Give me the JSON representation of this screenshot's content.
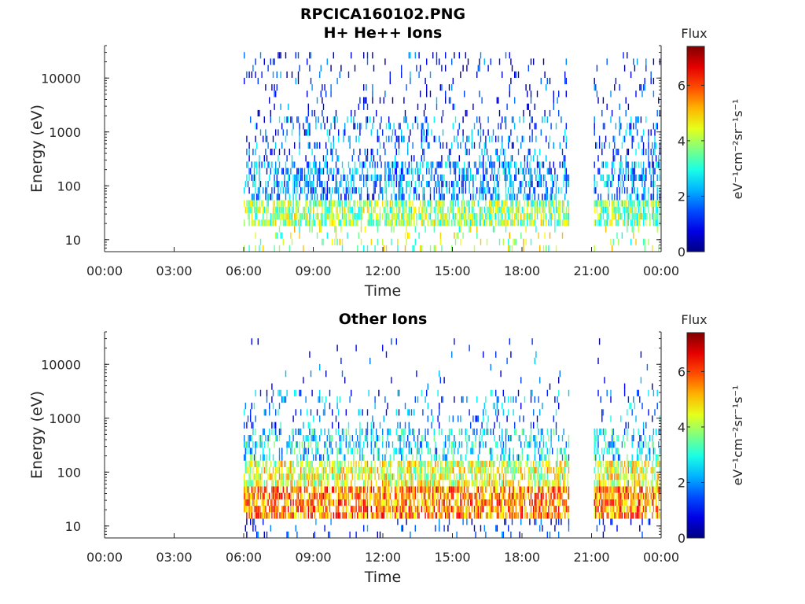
{
  "figure": {
    "title_line1": "RPCICA160102.PNG"
  },
  "colorbar": {
    "label": "Flux",
    "unit_text": "eV⁻¹cm⁻²sr⁻¹s⁻¹",
    "ticks": [
      "0",
      "2",
      "4",
      "6"
    ],
    "range": [
      0,
      7.4
    ],
    "colormap": "jet"
  },
  "chart_data": [
    {
      "type": "heatmap",
      "title": "H+ He++ Ions",
      "xlabel": "Time",
      "ylabel": "Energy (eV)",
      "x_tick_labels": [
        "00:00",
        "03:00",
        "06:00",
        "09:00",
        "12:00",
        "15:00",
        "18:00",
        "21:00",
        "00:00"
      ],
      "xlim_hours": [
        0,
        24
      ],
      "y_tick_labels": [
        "10",
        "100",
        "1000",
        "10000"
      ],
      "y_ticks": [
        10,
        100,
        1000,
        10000
      ],
      "ylim": [
        6,
        40000
      ],
      "y_scale": "log",
      "data_intervals_hours": [
        [
          6.0,
          20.0
        ],
        [
          21.1,
          23.95
        ]
      ],
      "intensity_profile": [
        {
          "energy_range": [
            6,
            18
          ],
          "flux": 4.0,
          "coverage": 0.15
        },
        {
          "energy_range": [
            18,
            60
          ],
          "flux": 3.8,
          "coverage": 0.85
        },
        {
          "energy_range": [
            60,
            250
          ],
          "flux": 2.0,
          "coverage": 0.55
        },
        {
          "energy_range": [
            250,
            2000
          ],
          "flux": 1.6,
          "coverage": 0.25
        },
        {
          "energy_range": [
            2000,
            30000
          ],
          "flux": 1.0,
          "coverage": 0.1
        }
      ]
    },
    {
      "type": "heatmap",
      "title": "Other Ions",
      "xlabel": "Time",
      "ylabel": "Energy (eV)",
      "x_tick_labels": [
        "00:00",
        "03:00",
        "06:00",
        "09:00",
        "12:00",
        "15:00",
        "18:00",
        "21:00",
        "00:00"
      ],
      "xlim_hours": [
        0,
        24
      ],
      "y_tick_labels": [
        "10",
        "100",
        "1000",
        "10000"
      ],
      "y_ticks": [
        10,
        100,
        1000,
        10000
      ],
      "ylim": [
        6,
        40000
      ],
      "y_scale": "log",
      "data_intervals_hours": [
        [
          6.0,
          20.0
        ],
        [
          21.1,
          23.95
        ]
      ],
      "intensity_profile": [
        {
          "energy_range": [
            6,
            12
          ],
          "flux": 1.0,
          "coverage": 0.12
        },
        {
          "energy_range": [
            12,
            50
          ],
          "flux": 5.6,
          "coverage": 0.95
        },
        {
          "energy_range": [
            50,
            150
          ],
          "flux": 4.4,
          "coverage": 0.8
        },
        {
          "energy_range": [
            150,
            600
          ],
          "flux": 2.6,
          "coverage": 0.45
        },
        {
          "energy_range": [
            600,
            3000
          ],
          "flux": 1.8,
          "coverage": 0.15
        },
        {
          "energy_range": [
            3000,
            30000
          ],
          "flux": 1.2,
          "coverage": 0.03
        }
      ]
    }
  ]
}
